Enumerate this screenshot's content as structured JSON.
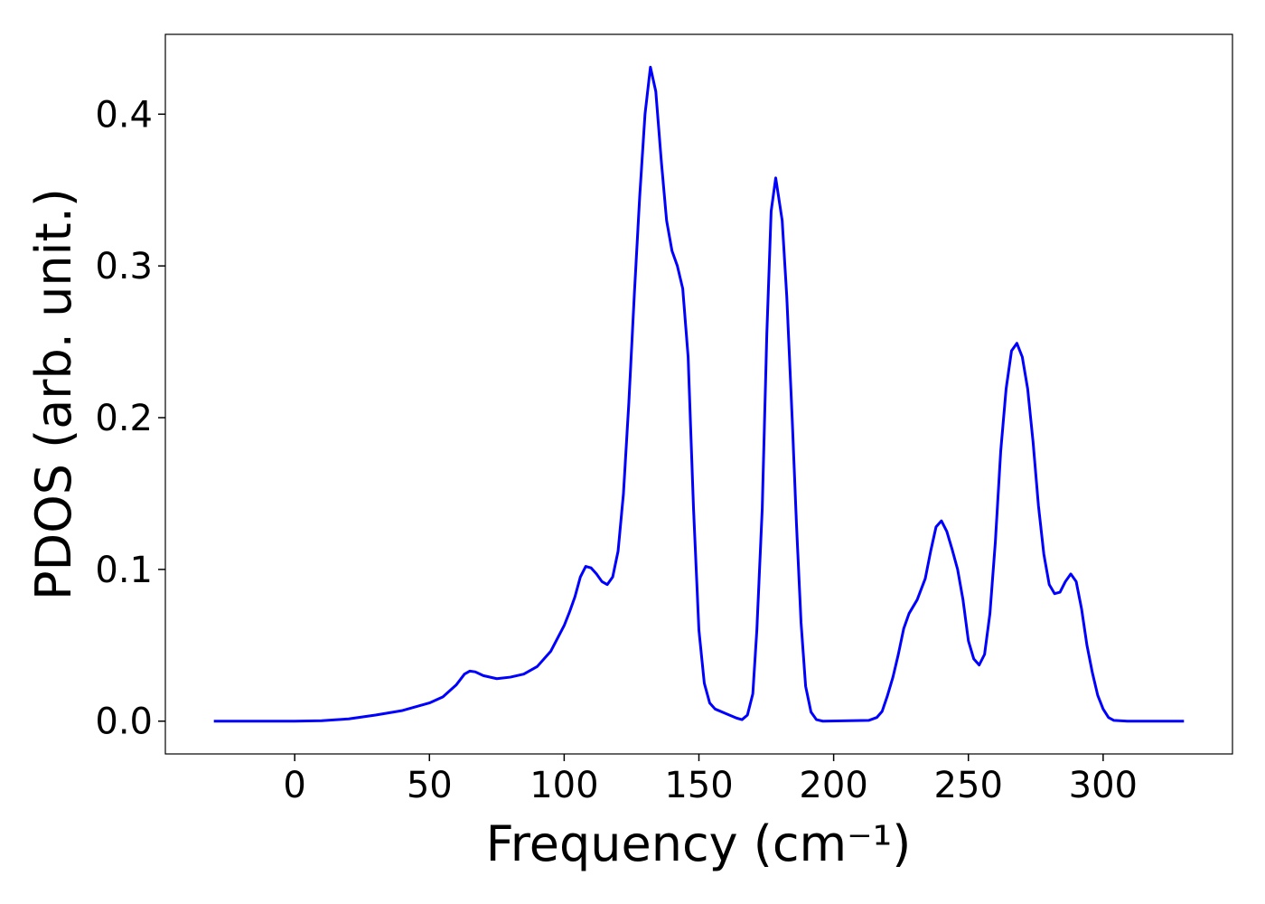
{
  "chart_data": {
    "type": "line",
    "xlabel": "Frequency (cm⁻¹)",
    "ylabel": "PDOS (arb. unit.)",
    "color": "#0000ff",
    "x": [
      -30,
      -10,
      0,
      10,
      20,
      30,
      40,
      50,
      55,
      60,
      63,
      65,
      67,
      70,
      75,
      80,
      85,
      90,
      95,
      100,
      102,
      104,
      106,
      108,
      110,
      112,
      114,
      116,
      118,
      120,
      122,
      124,
      126,
      128,
      130,
      132,
      134,
      136,
      138,
      140,
      142,
      144,
      146,
      148,
      150,
      152,
      154,
      156,
      160,
      164,
      166,
      168,
      170,
      171.5,
      173.5,
      175.2,
      176.8,
      178.5,
      180.9,
      182.6,
      184.6,
      186.2,
      187.9,
      189.6,
      191.6,
      193.6,
      196,
      213,
      216,
      218,
      220,
      222,
      224,
      226,
      228,
      231,
      234,
      236,
      238,
      240,
      242,
      244,
      246,
      248,
      250,
      252,
      254,
      256,
      258,
      260,
      262,
      264,
      266,
      268,
      270,
      272,
      274,
      276,
      278,
      280,
      282,
      284,
      286,
      288,
      290,
      292,
      294,
      296,
      298,
      300,
      302,
      304,
      309,
      330
    ],
    "values": [
      0,
      0,
      0,
      0.0003,
      0.0015,
      0.004,
      0.007,
      0.012,
      0.016,
      0.024,
      0.031,
      0.033,
      0.0325,
      0.03,
      0.028,
      0.029,
      0.031,
      0.036,
      0.046,
      0.063,
      0.072,
      0.082,
      0.095,
      0.102,
      0.101,
      0.097,
      0.092,
      0.09,
      0.095,
      0.112,
      0.15,
      0.21,
      0.28,
      0.345,
      0.4,
      0.431,
      0.415,
      0.37,
      0.33,
      0.31,
      0.3,
      0.285,
      0.24,
      0.14,
      0.06,
      0.025,
      0.012,
      0.008,
      0.005,
      0.002,
      0.001,
      0.004,
      0.018,
      0.06,
      0.14,
      0.255,
      0.336,
      0.358,
      0.33,
      0.28,
      0.2,
      0.13,
      0.065,
      0.023,
      0.006,
      0.001,
      0,
      0.0005,
      0.0024,
      0.0065,
      0.017,
      0.029,
      0.044,
      0.061,
      0.071,
      0.08,
      0.094,
      0.112,
      0.128,
      0.132,
      0.125,
      0.113,
      0.1,
      0.08,
      0.053,
      0.041,
      0.037,
      0.044,
      0.071,
      0.118,
      0.178,
      0.219,
      0.244,
      0.249,
      0.24,
      0.219,
      0.184,
      0.142,
      0.11,
      0.09,
      0.084,
      0.085,
      0.092,
      0.097,
      0.092,
      0.074,
      0.05,
      0.032,
      0.017,
      0.008,
      0.0024,
      0.0005,
      0,
      0
    ],
    "xlim": [
      -48,
      348
    ],
    "ylim": [
      -0.0216,
      0.4526
    ],
    "xticks": [
      0,
      50,
      100,
      150,
      200,
      250,
      300
    ],
    "yticks": [
      {
        "value": 0,
        "label": "0.0"
      },
      0.1,
      0.2,
      0.3,
      0.4
    ]
  }
}
